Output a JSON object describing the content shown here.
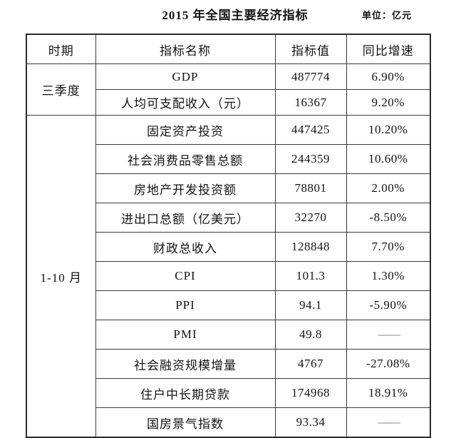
{
  "page_title": "2015 年全国主要经济指标",
  "unit_label": "单位：亿元",
  "chart_data": {
    "type": "table",
    "title": "2015 年全国主要经济指标",
    "unit": "亿元",
    "columns": [
      "时期",
      "指标名称",
      "指标值",
      "同比增速"
    ],
    "dash_placeholder": "——",
    "groups": [
      {
        "period": "三季度",
        "rows": [
          {
            "name": "GDP",
            "value": "487774",
            "growth": "6.90%"
          },
          {
            "name": "人均可支配收入（元）",
            "value": "16367",
            "growth": "9.20%"
          }
        ]
      },
      {
        "period": "1-10 月",
        "rows": [
          {
            "name": "固定资产投资",
            "value": "447425",
            "growth": "10.20%"
          },
          {
            "name": "社会消费品零售总额",
            "value": "244359",
            "growth": "10.60%"
          },
          {
            "name": "房地产开发投资额",
            "value": "78801",
            "growth": "2.00%"
          },
          {
            "name": "进出口总额（亿美元）",
            "value": "32270",
            "growth": "-8.50%"
          },
          {
            "name": "财政总收入",
            "value": "128848",
            "growth": "7.70%"
          },
          {
            "name": "CPI",
            "value": "101.3",
            "growth": "1.30%"
          },
          {
            "name": "PPI",
            "value": "94.1",
            "growth": "-5.90%"
          },
          {
            "name": "PMI",
            "value": "49.8",
            "growth": "——"
          },
          {
            "name": "社会融资规模增量",
            "value": "4767",
            "growth": "-27.08%"
          },
          {
            "name": "住户中长期贷款",
            "value": "174968",
            "growth": "18.91%"
          },
          {
            "name": "国房景气指数",
            "value": "93.34",
            "growth": "——"
          }
        ]
      }
    ]
  },
  "colors": {
    "border": "#3a3a3a",
    "outer_border": "#2b2b2b",
    "text": "#141414",
    "dash": "#7c7c7c",
    "background": "#ffffff"
  }
}
